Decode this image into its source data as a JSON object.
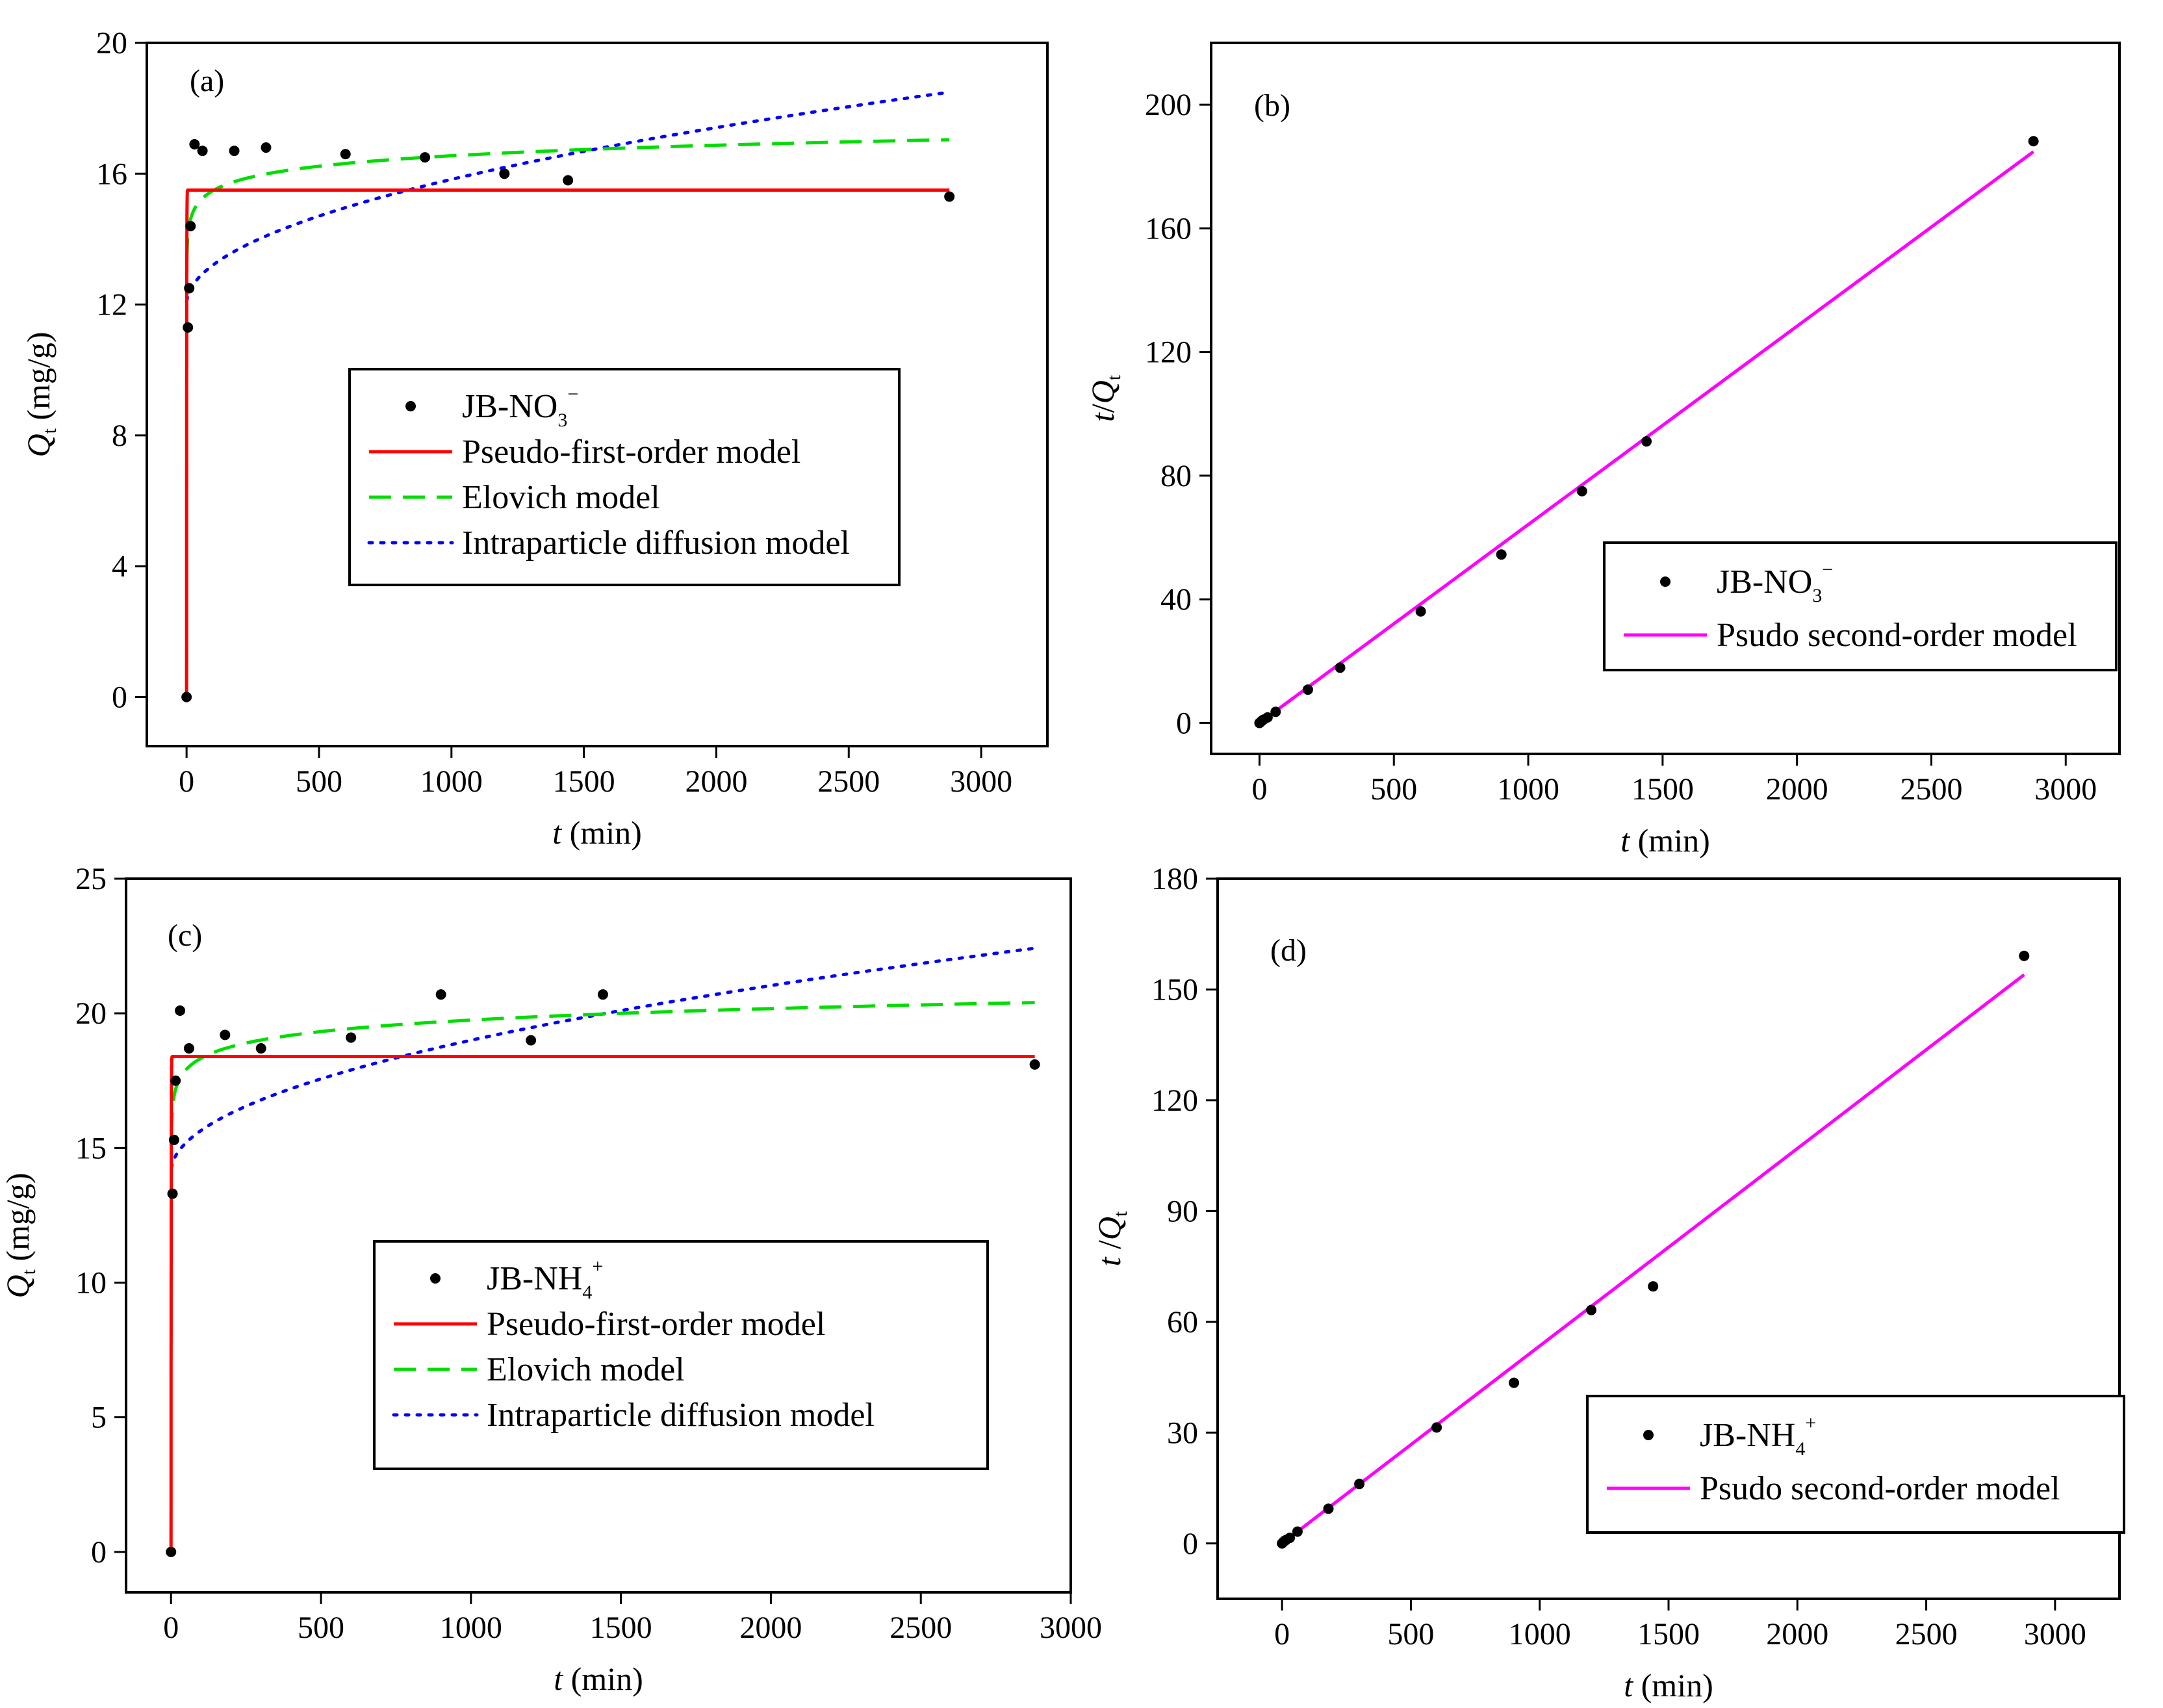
{
  "colors": {
    "pfo": "#ff0000",
    "elovich": "#00dd00",
    "ipd": "#0000ff",
    "pso": "#ff00ff",
    "points": "#000000"
  },
  "chart_data": [
    {
      "id": "a",
      "type": "scatter",
      "panel_label": "(a)",
      "xlabel": {
        "italic": "t",
        "rest": " (min)"
      },
      "ylabel": {
        "italic": "Q",
        "sub": "t",
        "rest": " (mg/g)"
      },
      "xlim": [
        -150,
        3250
      ],
      "ylim": [
        -1.5,
        20
      ],
      "xticks": [
        0,
        500,
        1000,
        1500,
        2000,
        2500,
        3000
      ],
      "yticks": [
        0,
        4,
        8,
        12,
        16,
        20
      ],
      "legend": {
        "placement": "center-left",
        "entries": [
          {
            "key": "points",
            "label": "JB-NO",
            "sub": "3",
            "sup": "−"
          },
          {
            "key": "pfo",
            "label": "Pseudo-first-order model"
          },
          {
            "key": "elovich",
            "label": "Elovich model"
          },
          {
            "key": "ipd",
            "label": "Intraparticle diffusion model"
          }
        ]
      },
      "points": {
        "x": [
          0,
          5,
          10,
          15,
          30,
          60,
          180,
          300,
          600,
          900,
          1200,
          1440,
          2880
        ],
        "y": [
          0,
          11.3,
          12.5,
          14.4,
          16.9,
          16.7,
          16.7,
          16.8,
          16.6,
          16.5,
          16.0,
          15.8,
          15.3
        ]
      },
      "models": {
        "pfo": {
          "name": "Pseudo-first-order model",
          "qe": 15.5,
          "k": 2.0
        },
        "elovich": {
          "name": "Elovich model",
          "x": [
            1,
            2,
            5,
            10,
            20,
            30,
            60,
            120,
            180,
            300,
            600,
            900,
            1200,
            1440,
            2000,
            2500,
            2880
          ],
          "y": [
            13.35,
            13.83,
            14.46,
            14.94,
            15.42,
            15.7,
            16.18,
            16.66,
            16.95,
            17.0,
            16.0,
            16.5,
            16.6,
            16.67,
            16.84,
            16.96,
            17.04
          ]
        },
        "ipd": {
          "name": "Intraparticle diffusion model",
          "C": 12.0,
          "kp": 0.121
        }
      }
    },
    {
      "id": "b",
      "type": "scatter",
      "panel_label": "(b)",
      "xlabel": {
        "italic": "t",
        "rest": " (min)"
      },
      "ylabel": {
        "italic": "t",
        "slash": "/",
        "italic2": "Q",
        "sub": "t",
        "rest": ""
      },
      "xlim": [
        -180,
        3200
      ],
      "ylim": [
        -10,
        220
      ],
      "xticks": [
        0,
        500,
        1000,
        1500,
        2000,
        2500,
        3000
      ],
      "yticks": [
        0,
        40,
        80,
        120,
        160,
        200
      ],
      "legend": {
        "placement": "bottom-right",
        "entries": [
          {
            "key": "points",
            "label": "JB-NO",
            "sub": "3",
            "sup": "−"
          },
          {
            "key": "pso",
            "label": "Psudo second-order model"
          }
        ]
      },
      "points": {
        "x": [
          0,
          5,
          10,
          15,
          30,
          60,
          180,
          300,
          600,
          900,
          1200,
          1440,
          2880
        ],
        "y": [
          0,
          0.4,
          0.8,
          1.1,
          1.8,
          3.6,
          10.8,
          17.9,
          36.1,
          54.5,
          75.0,
          91.1,
          188.2
        ]
      },
      "models": {
        "pso": {
          "name": "Psudo second-order model",
          "x": [
            0,
            2880
          ],
          "y": [
            0,
            184.8
          ]
        }
      }
    },
    {
      "id": "c",
      "type": "scatter",
      "panel_label": "(c)",
      "xlabel": {
        "italic": "t",
        "rest": " (min)"
      },
      "ylabel": {
        "italic": "Q",
        "sub": "t",
        "rest": " (mg/g)"
      },
      "xlim": [
        -150,
        3000
      ],
      "ylim": [
        -1.5,
        25
      ],
      "xticks": [
        0,
        500,
        1000,
        1500,
        2000,
        2500,
        3000
      ],
      "yticks": [
        0,
        5,
        10,
        15,
        20,
        25
      ],
      "legend": {
        "placement": "center-left",
        "entries": [
          {
            "key": "points",
            "label": "JB-NH",
            "sub": "4",
            "sup": "+"
          },
          {
            "key": "pfo",
            "label": "Pseudo-first-order model"
          },
          {
            "key": "elovich",
            "label": "Elovich model"
          },
          {
            "key": "ipd",
            "label": "Intraparticle diffusion model"
          }
        ]
      },
      "points": {
        "x": [
          0,
          5,
          10,
          15,
          30,
          60,
          180,
          300,
          600,
          900,
          1200,
          1440,
          2880
        ],
        "y": [
          0,
          13.3,
          15.3,
          17.5,
          20.1,
          18.7,
          19.2,
          18.7,
          19.1,
          20.7,
          19.0,
          20.7,
          18.1
        ]
      },
      "models": {
        "pfo": {
          "name": "Pseudo-first-order model",
          "qe": 18.4,
          "k": 2.0
        },
        "elovich": {
          "name": "Elovich model",
          "x": [
            1,
            2,
            5,
            10,
            20,
            30,
            60,
            120,
            180,
            300,
            600,
            900,
            1200,
            1440,
            2000,
            2500,
            2880
          ],
          "y": [
            15.5,
            16.0,
            16.7,
            17.2,
            17.7,
            18.0,
            18.5,
            19.0,
            19.29,
            19.66,
            19.1,
            19.8,
            20.0,
            20.0,
            20.2,
            20.3,
            20.4
          ]
        },
        "ipd": {
          "name": "Intraparticle diffusion model",
          "C": 14.1,
          "kp": 0.155
        }
      }
    },
    {
      "id": "d",
      "type": "scatter",
      "panel_label": "(d)",
      "xlabel": {
        "italic": "t",
        "rest": " (min)"
      },
      "ylabel": {
        "italic": "t",
        "slash": " /",
        "italic2": "Q",
        "sub": "t",
        "rest": ""
      },
      "xlim": [
        -250,
        3250
      ],
      "ylim": [
        -15,
        180
      ],
      "xticks": [
        0,
        500,
        1000,
        1500,
        2000,
        2500,
        3000
      ],
      "yticks": [
        0,
        30,
        60,
        90,
        120,
        150,
        180
      ],
      "legend": {
        "placement": "bottom-right",
        "entries": [
          {
            "key": "points",
            "label": "JB-NH",
            "sub": "4",
            "sup": "+"
          },
          {
            "key": "pso",
            "label": "Psudo second-order model"
          }
        ]
      },
      "points": {
        "x": [
          0,
          5,
          10,
          15,
          30,
          60,
          180,
          300,
          600,
          900,
          1200,
          1440,
          2880
        ],
        "y": [
          0,
          0.4,
          0.7,
          0.9,
          1.5,
          3.2,
          9.4,
          16.1,
          31.4,
          43.5,
          63.2,
          69.6,
          159.1
        ]
      },
      "models": {
        "pso": {
          "name": "Psudo second-order model",
          "x": [
            0,
            2880
          ],
          "y": [
            0,
            154
          ]
        }
      }
    }
  ]
}
